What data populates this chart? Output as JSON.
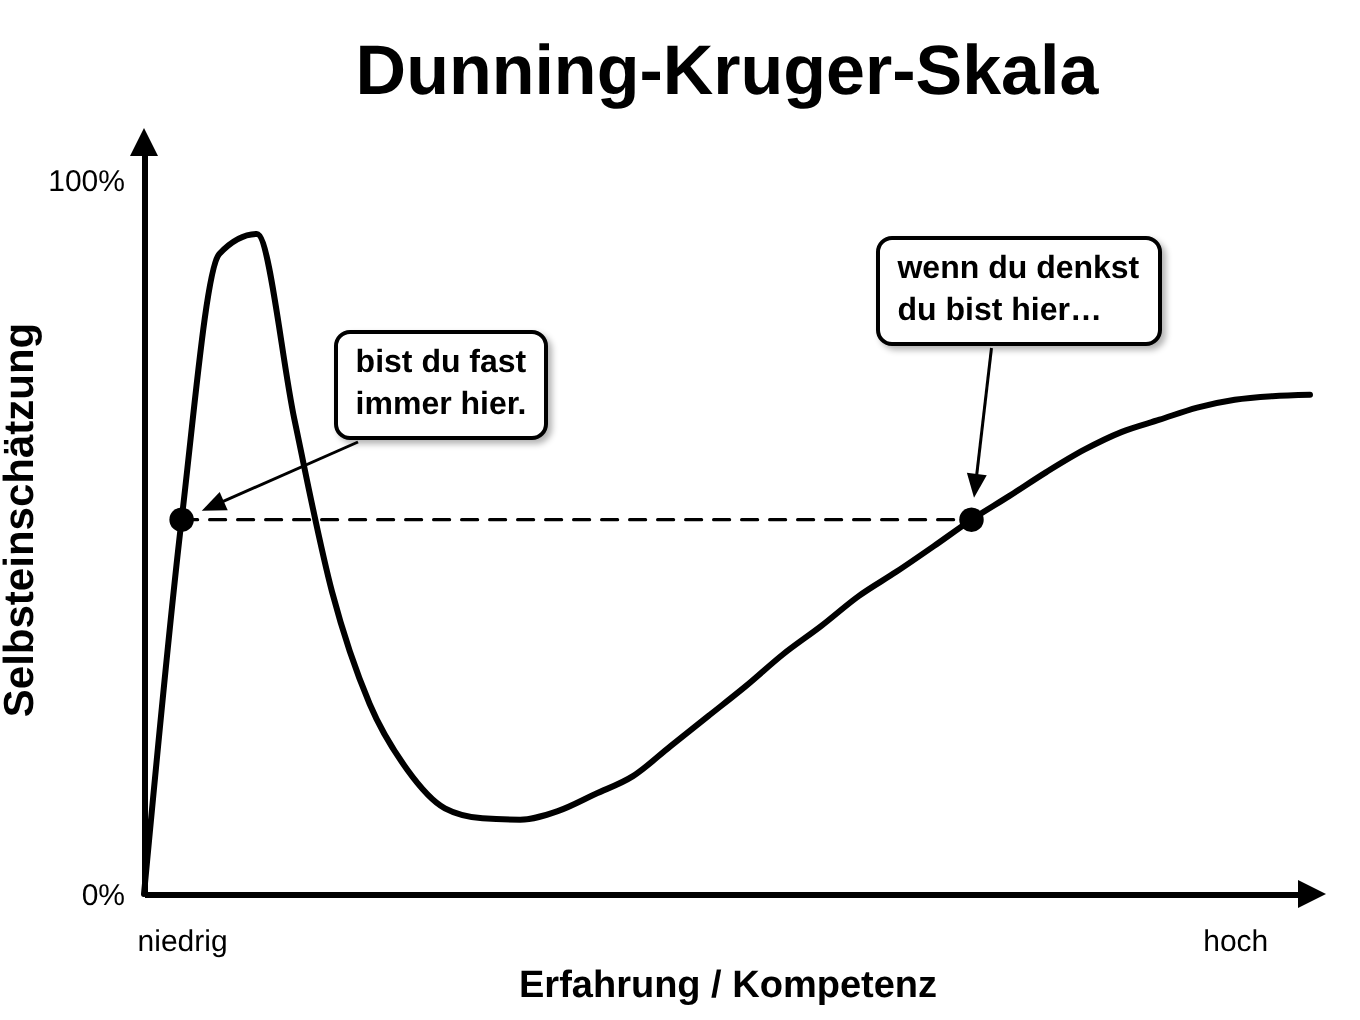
{
  "chart_data": {
    "type": "line",
    "title": "Dunning-Kruger-Skala",
    "xlabel": "Erfahrung / Kompetenz",
    "ylabel": "Selbsteinschätzung",
    "categories": [
      null,
      "niedrig",
      null,
      null,
      null,
      null,
      null,
      null,
      null,
      null,
      null,
      null,
      null,
      null,
      null,
      null,
      null,
      null,
      null,
      null,
      null,
      null,
      null,
      null,
      null,
      null,
      null,
      null,
      null,
      "hoch",
      null,
      null
    ],
    "ylim": [
      0,
      105
    ],
    "yticks": [
      {
        "value": 0,
        "label": "0%"
      },
      {
        "value": 100,
        "label": "100%"
      }
    ],
    "grid": false,
    "series": [
      {
        "color": "#000000",
        "line_style": "solid",
        "values": [
          0,
          52.4,
          89.6,
          92.4,
          66.4,
          42.3,
          26.6,
          17.4,
          12,
          10.6,
          10.4,
          11.6,
          14,
          16.5,
          20.7,
          24.9,
          29.1,
          33.6,
          37.5,
          41.7,
          45.1,
          48.7,
          52.4,
          55.7,
          59.1,
          62.2,
          64.7,
          66.4,
          68.1,
          69.2,
          69.7,
          69.9
        ]
      },
      {
        "color": "#000000",
        "line_style": "dashed",
        "values": [
          null,
          52.4,
          52.4,
          52.4,
          52.4,
          52.4,
          52.4,
          52.4,
          52.4,
          52.4,
          52.4,
          52.4,
          52.4,
          52.4,
          52.4,
          52.4,
          52.4,
          52.4,
          52.4,
          52.4,
          52.4,
          52.4,
          52.4,
          null,
          null,
          null,
          null,
          null,
          null,
          null,
          null,
          null
        ]
      },
      {
        "type": "scatter",
        "color": "#000000",
        "marker": "circle",
        "values": [
          null,
          52.4,
          null,
          null,
          null,
          null,
          null,
          null,
          null,
          null,
          null,
          null,
          null,
          null,
          null,
          null,
          null,
          null,
          null,
          null,
          null,
          null,
          52.4,
          null,
          null,
          null,
          null,
          null,
          null,
          null,
          null,
          null
        ]
      }
    ],
    "annotations": [
      "bist du fast\nimmer hier.",
      "wenn du denkst\ndu bist hier…"
    ]
  }
}
